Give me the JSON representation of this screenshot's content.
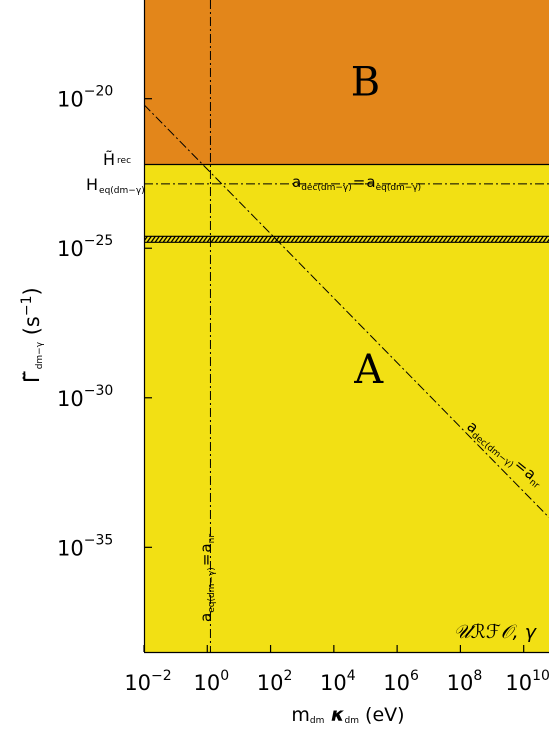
{
  "chart_data": {
    "type": "area",
    "title": "",
    "xlabel": {
      "main": "m",
      "sub1": "dm",
      "mid": " κ",
      "sub2": "dm",
      "unit": "  (eV)"
    },
    "ylabel": {
      "main": "Γ̃",
      "sub": "dm−γ",
      "unit": " (s",
      "exp": "−1",
      "close": ")"
    },
    "x_scale": "log10",
    "y_scale": "log10",
    "xlim": [
      -2,
      10.8
    ],
    "ylim": [
      -38.5,
      -16.7
    ],
    "x_ticks": [
      {
        "value": -2,
        "base": "10",
        "exp": "−2"
      },
      {
        "value": 0,
        "base": "10",
        "exp": "0"
      },
      {
        "value": 2,
        "base": "10",
        "exp": "2"
      },
      {
        "value": 4,
        "base": "10",
        "exp": "4"
      },
      {
        "value": 6,
        "base": "10",
        "exp": "6"
      },
      {
        "value": 8,
        "base": "10",
        "exp": "8"
      },
      {
        "value": 10,
        "base": "10",
        "exp": "10"
      }
    ],
    "y_ticks": [
      {
        "value": -20,
        "base": "10",
        "exp": "−20"
      },
      {
        "value": -25,
        "base": "10",
        "exp": "−25"
      },
      {
        "value": -30,
        "base": "10",
        "exp": "−30"
      },
      {
        "value": -35,
        "base": "10",
        "exp": "−35"
      }
    ],
    "regions": [
      {
        "name": "A",
        "label": "A",
        "y_from": -38.5,
        "y_to": -22.2,
        "color": "#f2e014",
        "label_pos": [
          5.1,
          -29.5
        ]
      },
      {
        "name": "B",
        "label": "B",
        "y_from": -22.2,
        "y_to": -16.7,
        "color": "#e3861a",
        "label_pos": [
          5.0,
          -19.9
        ]
      }
    ],
    "lines": [
      {
        "name": "H_rec",
        "kind": "solid",
        "y": -22.2
      },
      {
        "name": "H_eq",
        "kind": "dashdot",
        "y": -22.85
      },
      {
        "name": "hatched",
        "kind": "hatched",
        "y": -24.7
      },
      {
        "name": "a_eq_eq_a_nr",
        "kind": "dashdot-vertical",
        "x": 0.1
      },
      {
        "name": "a_dec_eq_a_nr",
        "kind": "dashdot",
        "points": [
          [
            -2,
            -20.2
          ],
          [
            10.8,
            -34.0
          ]
        ]
      }
    ],
    "labels": {
      "h_rec": {
        "main": "H̃",
        "sub": "rec"
      },
      "h_eq": {
        "main": "H",
        "sub": "eq(dm−γ)"
      },
      "ann_top": {
        "a1": "a",
        "s1": "dec(dm−γ)",
        "eq": "=",
        "a2": "a",
        "s2": "eq(dm−γ)"
      },
      "ann_diag": {
        "a1": "a",
        "s1": "dec(dm−γ)",
        "eq": "=",
        "a2": "a",
        "s2": "nr"
      },
      "ann_vert": {
        "a1": "a",
        "s1": "eq(dm−γ)",
        "eq": "=",
        "a2": "a",
        "s2": "nr"
      },
      "corner": "𝒰ℛℱ𝒪,  γ"
    }
  }
}
